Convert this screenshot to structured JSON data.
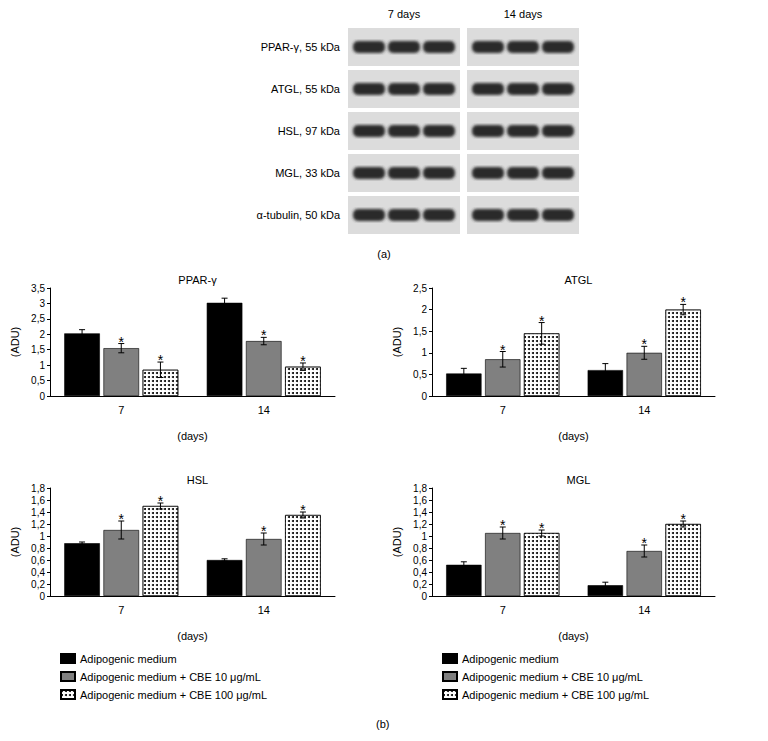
{
  "blot": {
    "label": "(a)",
    "columns": [
      "7 days",
      "14 days"
    ],
    "rows": [
      "PPAR-γ, 55 kDa",
      "ATGL, 55 kDa",
      "HSL, 97 kDa",
      "MGL, 33 kDa",
      "α-tubulin, 50 kDa"
    ]
  },
  "panel_label": "(b)",
  "chart_data": [
    {
      "type": "bar",
      "title": "PPAR-γ",
      "x_label": "(days)",
      "y_label": "(ADU)",
      "categories": [
        "7",
        "14"
      ],
      "ylim": [
        0,
        3.5
      ],
      "yticks": [
        0,
        {
          "value": 0.5,
          "label": "0,5"
        },
        1,
        {
          "value": 1.5,
          "label": "1,5"
        },
        2,
        {
          "value": 2.5,
          "label": "2,5"
        },
        3,
        {
          "value": 3.5,
          "label": "3,5"
        }
      ],
      "grid": false,
      "series": [
        {
          "name": "Adipogenic medium",
          "color": "#000000",
          "values": [
            2.03,
            3.02
          ],
          "errors": [
            0.12,
            0.15
          ]
        },
        {
          "name": "Adipogenic medium + CBE 10 μg/mL",
          "color": "#808080",
          "values": [
            1.55,
            1.78
          ],
          "errors": [
            0.15,
            0.12
          ],
          "annotations": [
            "*",
            "*"
          ]
        },
        {
          "name": "Adipogenic medium + CBE 100 μg/mL",
          "color": "#ffffff",
          "marker": "dots",
          "values": [
            0.85,
            0.95
          ],
          "errors": [
            0.25,
            0.12
          ],
          "annotations": [
            "*",
            "*"
          ]
        }
      ]
    },
    {
      "type": "bar",
      "title": "ATGL",
      "x_label": "(days)",
      "y_label": "(ADU)",
      "categories": [
        "7",
        "14"
      ],
      "ylim": [
        0,
        2.5
      ],
      "yticks": [
        0,
        {
          "value": 0.5,
          "label": "0,5"
        },
        1,
        {
          "value": 1.5,
          "label": "1,5"
        },
        2,
        {
          "value": 2.5,
          "label": "2,5"
        }
      ],
      "grid": false,
      "series": [
        {
          "name": "Adipogenic medium",
          "color": "#000000",
          "values": [
            0.52,
            0.6
          ],
          "errors": [
            0.12,
            0.15
          ]
        },
        {
          "name": "Adipogenic medium + CBE 10 μg/mL",
          "color": "#808080",
          "values": [
            0.85,
            1.0
          ],
          "errors": [
            0.18,
            0.15
          ],
          "annotations": [
            "*",
            "*"
          ]
        },
        {
          "name": "Adipogenic medium + CBE 100 μg/mL",
          "color": "#ffffff",
          "marker": "dots",
          "values": [
            1.45,
            2.0
          ],
          "errors": [
            0.25,
            0.12
          ],
          "annotations": [
            "*",
            "*"
          ]
        }
      ]
    },
    {
      "type": "bar",
      "title": "HSL",
      "x_label": "(days)",
      "y_label": "(ADU)",
      "categories": [
        "7",
        "14"
      ],
      "ylim": [
        0,
        1.8
      ],
      "yticks": [
        0,
        {
          "value": 0.2,
          "label": "0,2"
        },
        {
          "value": 0.4,
          "label": "0,4"
        },
        {
          "value": 0.6,
          "label": "0,6"
        },
        {
          "value": 0.8,
          "label": "0,8"
        },
        1,
        {
          "value": 1.2,
          "label": "1,2"
        },
        {
          "value": 1.4,
          "label": "1,4"
        },
        {
          "value": 1.6,
          "label": "1,6"
        },
        {
          "value": 1.8,
          "label": "1,8"
        }
      ],
      "grid": false,
      "legend": "bottom",
      "series": [
        {
          "name": "Adipogenic medium",
          "color": "#000000",
          "values": [
            0.88,
            0.6
          ],
          "errors": [
            0.02,
            0.02
          ]
        },
        {
          "name": "Adipogenic medium + CBE 10 μg/mL",
          "color": "#808080",
          "values": [
            1.1,
            0.95
          ],
          "errors": [
            0.15,
            0.1
          ],
          "annotations": [
            "*",
            "*"
          ]
        },
        {
          "name": "Adipogenic medium + CBE 100 μg/mL",
          "color": "#ffffff",
          "marker": "dots",
          "values": [
            1.5,
            1.35
          ],
          "errors": [
            0.05,
            0.05
          ],
          "annotations": [
            "*",
            "*"
          ]
        }
      ]
    },
    {
      "type": "bar",
      "title": "MGL",
      "x_label": "(days)",
      "y_label": "(ADU)",
      "categories": [
        "7",
        "14"
      ],
      "ylim": [
        0,
        1.8
      ],
      "yticks": [
        0,
        {
          "value": 0.2,
          "label": "0,2"
        },
        {
          "value": 0.4,
          "label": "0,4"
        },
        {
          "value": 0.6,
          "label": "0,6"
        },
        {
          "value": 0.8,
          "label": "0,8"
        },
        1,
        {
          "value": 1.2,
          "label": "1,2"
        },
        {
          "value": 1.4,
          "label": "1,4"
        },
        {
          "value": 1.6,
          "label": "1,6"
        },
        {
          "value": 1.8,
          "label": "1,8"
        }
      ],
      "grid": false,
      "legend": "bottom",
      "series": [
        {
          "name": "Adipogenic medium",
          "color": "#000000",
          "values": [
            0.52,
            0.18
          ],
          "errors": [
            0.05,
            0.05
          ]
        },
        {
          "name": "Adipogenic medium + CBE 10 μg/mL",
          "color": "#808080",
          "values": [
            1.05,
            0.75
          ],
          "errors": [
            0.1,
            0.1
          ],
          "annotations": [
            "*",
            "*"
          ]
        },
        {
          "name": "Adipogenic medium + CBE 100 μg/mL",
          "color": "#ffffff",
          "marker": "dots",
          "values": [
            1.05,
            1.2
          ],
          "errors": [
            0.05,
            0.05
          ],
          "annotations": [
            "*",
            "*"
          ]
        }
      ]
    }
  ]
}
